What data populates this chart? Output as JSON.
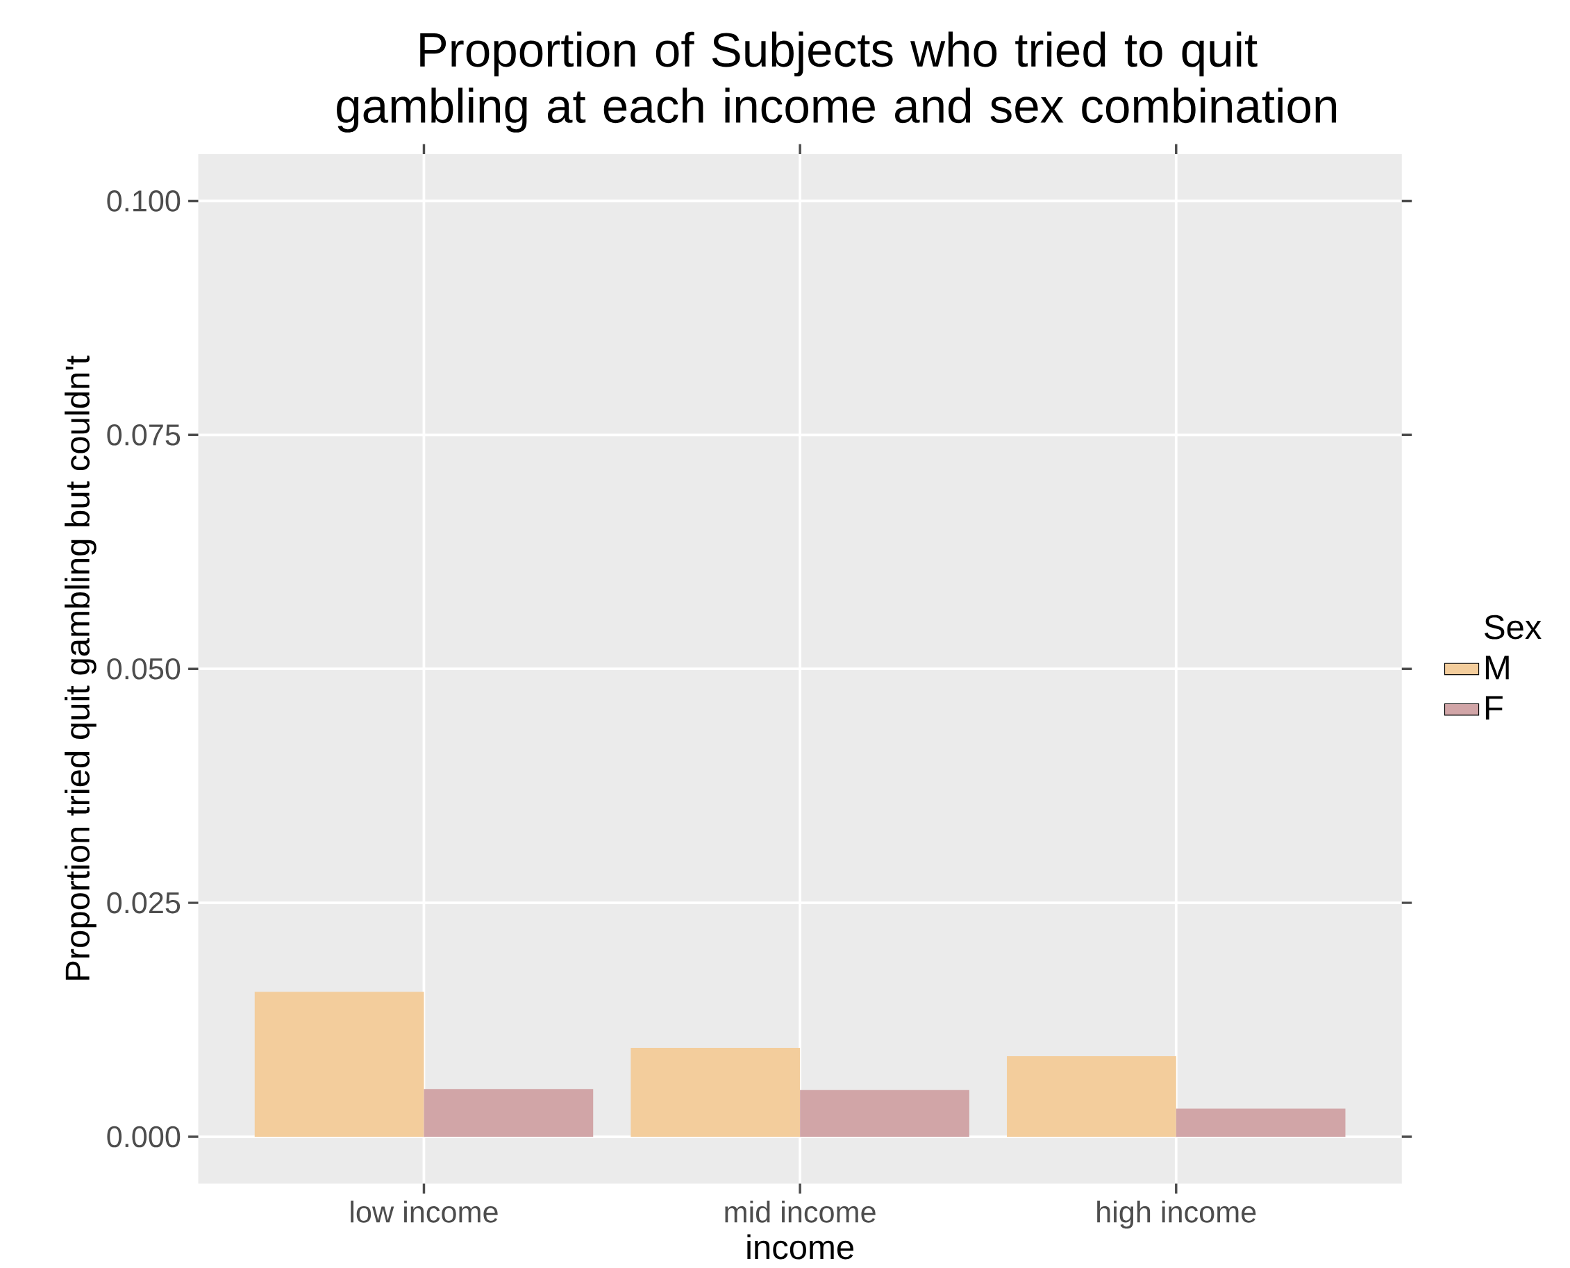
{
  "chart_data": {
    "type": "bar",
    "title": "Proportion of Subjects who tried to quit gambling at each income and sex combination",
    "xlabel": "income",
    "ylabel": "Proportion tried quit gambling but couldn't",
    "legend_title": "Sex",
    "categories": [
      "low income",
      "mid income",
      "high income"
    ],
    "series": [
      {
        "name": "M",
        "color": "#f3cd9c",
        "values": [
          0.0155,
          0.0095,
          0.0086
        ]
      },
      {
        "name": "F",
        "color": "#d1a5a7",
        "values": [
          0.0051,
          0.005,
          0.003
        ]
      }
    ],
    "ylim": [
      -0.005,
      0.105
    ],
    "yticks": [
      {
        "value": 0,
        "label": "0.000"
      },
      {
        "value": 0.025,
        "label": "0.025"
      },
      {
        "value": 0.05,
        "label": "0.050"
      },
      {
        "value": 0.075,
        "label": "0.075"
      },
      {
        "value": 0.1,
        "label": "0.100"
      }
    ],
    "grid": true,
    "legend": "right"
  }
}
